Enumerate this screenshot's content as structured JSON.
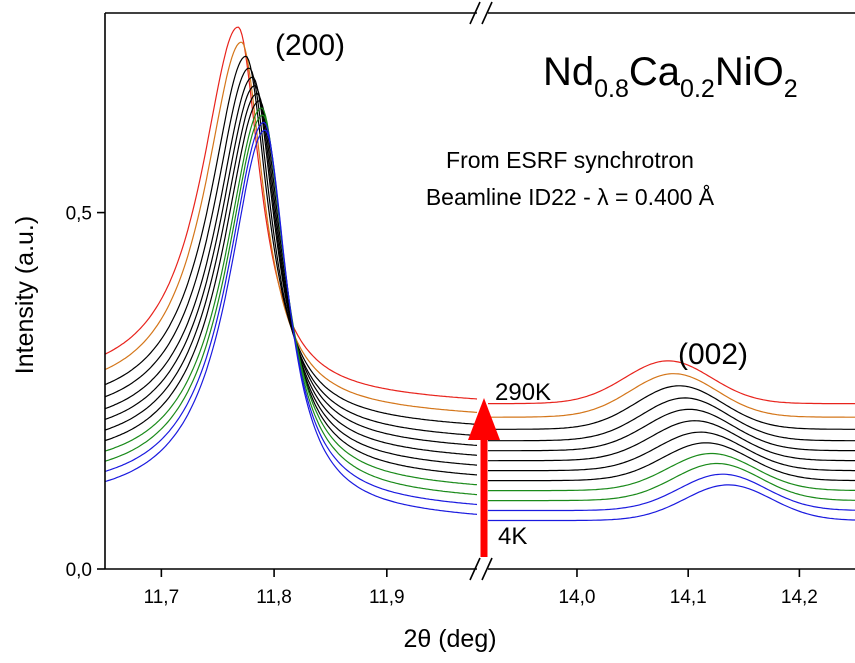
{
  "chart_data": {
    "type": "line",
    "xlabel": "2θ (deg)",
    "ylabel": "Intensity (a.u.)",
    "x_axis_break": true,
    "segments": [
      {
        "xlim": [
          11.65,
          11.98
        ],
        "ticks": [
          "11,7",
          "11,8",
          "11,9"
        ],
        "tick_values": [
          11.7,
          11.8,
          11.9
        ]
      },
      {
        "xlim": [
          13.92,
          14.25
        ],
        "ticks": [
          "14,0",
          "14,1",
          "14,2"
        ],
        "tick_values": [
          14.0,
          14.1,
          14.2
        ]
      }
    ],
    "ylim": [
      0.0,
      0.78
    ],
    "yticks": [
      "0,0",
      "0,5"
    ],
    "ytick_values": [
      0.0,
      0.5
    ],
    "compound": {
      "base": [
        "Nd",
        "Ca",
        "NiO"
      ],
      "subscripts": [
        "0.8",
        "0.2",
        "2"
      ]
    },
    "source_line1": "From ESRF synchrotron",
    "source_line2": "Beamline ID22 - λ = 0.400 Å",
    "peak_labels": [
      "(200)",
      "(002)"
    ],
    "temp_high": "290K",
    "temp_low": "4K",
    "colors": {
      "highest": "#e8231c",
      "second": "#d4761a",
      "middle": "#000000",
      "green": "#1a8a1a",
      "blue": "#1a1adf",
      "arrow": "#ff0000",
      "label_high": "#e8231c",
      "label_low": "#1a1adf"
    },
    "series": [
      {
        "color": "#e8231c",
        "peak200_x": 11.768,
        "peak200_y": 0.766,
        "peak002_x": 14.082,
        "peak002_y": 0.292,
        "base_left": 0.248,
        "base_mid": 0.232,
        "base_right": 0.232
      },
      {
        "color": "#d4761a",
        "peak200_x": 11.771,
        "peak200_y": 0.745,
        "peak002_x": 14.087,
        "peak002_y": 0.274,
        "base_left": 0.229,
        "base_mid": 0.213,
        "base_right": 0.213
      },
      {
        "color": "#000000",
        "peak200_x": 11.775,
        "peak200_y": 0.725,
        "peak002_x": 14.092,
        "peak002_y": 0.257,
        "base_left": 0.211,
        "base_mid": 0.196,
        "base_right": 0.196
      },
      {
        "color": "#000000",
        "peak200_x": 11.778,
        "peak200_y": 0.709,
        "peak002_x": 14.097,
        "peak002_y": 0.24,
        "base_left": 0.196,
        "base_mid": 0.18,
        "base_right": 0.18
      },
      {
        "color": "#000000",
        "peak200_x": 11.781,
        "peak200_y": 0.696,
        "peak002_x": 14.101,
        "peak002_y": 0.224,
        "base_left": 0.181,
        "base_mid": 0.166,
        "base_right": 0.166
      },
      {
        "color": "#000000",
        "peak200_x": 11.783,
        "peak200_y": 0.684,
        "peak002_x": 14.106,
        "peak002_y": 0.208,
        "base_left": 0.167,
        "base_mid": 0.152,
        "base_right": 0.152
      },
      {
        "color": "#000000",
        "peak200_x": 11.785,
        "peak200_y": 0.673,
        "peak002_x": 14.111,
        "peak002_y": 0.192,
        "base_left": 0.153,
        "base_mid": 0.138,
        "base_right": 0.138
      },
      {
        "color": "#000000",
        "peak200_x": 11.787,
        "peak200_y": 0.663,
        "peak002_x": 14.116,
        "peak002_y": 0.177,
        "base_left": 0.139,
        "base_mid": 0.124,
        "base_right": 0.124
      },
      {
        "color": "#1a8a1a",
        "peak200_x": 11.789,
        "peak200_y": 0.653,
        "peak002_x": 14.121,
        "peak002_y": 0.162,
        "base_left": 0.125,
        "base_mid": 0.11,
        "base_right": 0.11
      },
      {
        "color": "#1a8a1a",
        "peak200_x": 11.79,
        "peak200_y": 0.643,
        "peak002_x": 14.126,
        "peak002_y": 0.148,
        "base_left": 0.111,
        "base_mid": 0.096,
        "base_right": 0.096
      },
      {
        "color": "#1a1adf",
        "peak200_x": 11.791,
        "peak200_y": 0.633,
        "peak002_x": 14.131,
        "peak002_y": 0.133,
        "base_left": 0.097,
        "base_mid": 0.082,
        "base_right": 0.082
      },
      {
        "color": "#1a1adf",
        "peak200_x": 11.792,
        "peak200_y": 0.622,
        "peak002_x": 14.136,
        "peak002_y": 0.118,
        "base_left": 0.083,
        "base_mid": 0.068,
        "base_right": 0.068
      }
    ]
  }
}
